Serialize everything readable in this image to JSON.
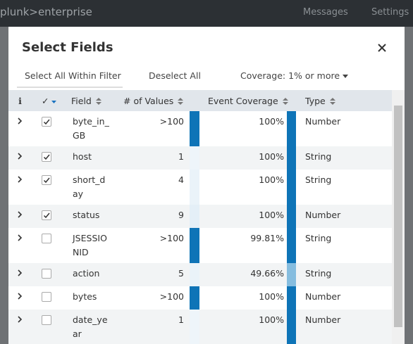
{
  "topbar": {
    "logo": "plunk>enterprise",
    "messages": "Messages",
    "settings": "Settings"
  },
  "modal": {
    "title": "Select Fields",
    "toolbar": {
      "select_all": "Select All Within Filter",
      "deselect_all": "Deselect All",
      "coverage": "Coverage: 1% or more"
    },
    "table": {
      "headers": {
        "info": "i",
        "check": "✓",
        "field": "Field",
        "values": "# of Values",
        "coverage": "Event Coverage",
        "type": "Type"
      },
      "rows": [
        {
          "field": "byte_in_GB",
          "values": ">100",
          "coverage": "100%",
          "type": "Number",
          "checked": true,
          "values_bar_color": "#0e74b7",
          "coverage_bar_color": "#0e74b7"
        },
        {
          "field": "host",
          "values": "1",
          "coverage": "100%",
          "type": "String",
          "checked": true,
          "values_bar_color": "#eef5fa",
          "coverage_bar_color": "#0e74b7"
        },
        {
          "field": "short_day",
          "values": "4",
          "coverage": "100%",
          "type": "String",
          "checked": true,
          "values_bar_color": "#eaf3f9",
          "coverage_bar_color": "#0e74b7"
        },
        {
          "field": "status",
          "values": "9",
          "coverage": "100%",
          "type": "Number",
          "checked": true,
          "values_bar_color": "#e4eff7",
          "coverage_bar_color": "#0e74b7"
        },
        {
          "field": "JSESSIONID",
          "values": ">100",
          "coverage": "99.81%",
          "type": "String",
          "checked": false,
          "values_bar_color": "#0e74b7",
          "coverage_bar_color": "#0e74b7"
        },
        {
          "field": "action",
          "values": "5",
          "coverage": "49.66%",
          "type": "String",
          "checked": false,
          "values_bar_color": "#eaf3f9",
          "coverage_bar_color": "#86bddf"
        },
        {
          "field": "bytes",
          "values": ">100",
          "coverage": "100%",
          "type": "Number",
          "checked": false,
          "values_bar_color": "#0e74b7",
          "coverage_bar_color": "#0e74b7"
        },
        {
          "field": "date_year",
          "values": "1",
          "coverage": "100%",
          "type": "Number",
          "checked": false,
          "values_bar_color": "#eef5fa",
          "coverage_bar_color": "#0e74b7"
        }
      ]
    }
  }
}
